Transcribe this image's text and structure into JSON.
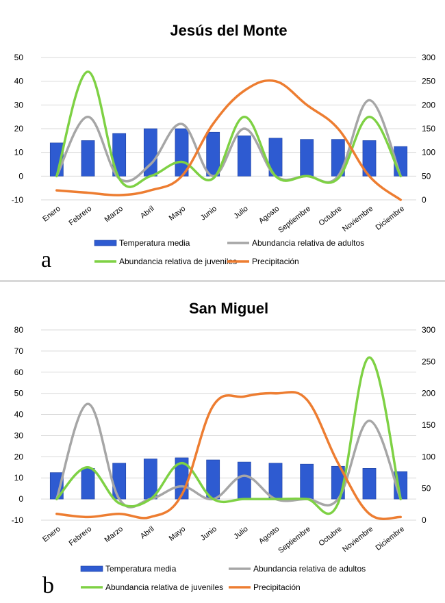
{
  "chart_data": [
    {
      "type": "bar+line",
      "panel_label": "a",
      "title": "Jesús del Monte",
      "categories": [
        "Enero",
        "Febrero",
        "Marzo",
        "Abril",
        "Mayo",
        "Junio",
        "Julio",
        "Agosto",
        "Septiembre",
        "Octubre",
        "Noviembre",
        "Diciembre"
      ],
      "y_left": {
        "min": -10,
        "max": 50,
        "ticks": [
          -10,
          0,
          10,
          20,
          30,
          40,
          50
        ]
      },
      "y_right": {
        "min": 0,
        "max": 300,
        "ticks": [
          0,
          50,
          100,
          150,
          200,
          250,
          300
        ]
      },
      "grid": true,
      "legend_position": "bottom",
      "series": [
        {
          "name": "Temperatura media",
          "type": "bar",
          "axis": "left",
          "color": "#2e5bd1",
          "values": [
            14,
            15,
            18,
            20,
            20,
            18.5,
            17,
            16,
            15.5,
            15.5,
            15,
            12.5
          ]
        },
        {
          "name": "Abundancia relativa de adultos",
          "type": "line",
          "axis": "left",
          "color": "#a6a6a6",
          "values": [
            0,
            25,
            -1,
            5,
            22,
            0,
            20,
            0,
            0,
            0,
            32,
            0
          ]
        },
        {
          "name": "Abundancia relativa de juveniles",
          "type": "line",
          "axis": "left",
          "color": "#7ed144",
          "values": [
            0,
            44,
            -1,
            0,
            6,
            -1,
            25,
            0,
            0,
            -1,
            25,
            0
          ]
        },
        {
          "name": "Precipitación",
          "type": "line",
          "axis": "right",
          "color": "#ed7d31",
          "values": [
            20,
            15,
            10,
            20,
            50,
            160,
            230,
            250,
            200,
            150,
            50,
            0
          ]
        }
      ]
    },
    {
      "type": "bar+line",
      "panel_label": "b",
      "title": "San Miguel",
      "categories": [
        "Enero",
        "Febrero",
        "Marzo",
        "Abril",
        "Mayo",
        "Junio",
        "Julio",
        "Agosto",
        "Septiembre",
        "Octubre",
        "Noviembre",
        "Diciembre"
      ],
      "y_left": {
        "min": -10,
        "max": 80,
        "ticks": [
          -10,
          0,
          10,
          20,
          30,
          40,
          50,
          60,
          70,
          80
        ]
      },
      "y_right": {
        "min": 0,
        "max": 300,
        "ticks": [
          0,
          50,
          100,
          150,
          200,
          250,
          300
        ]
      },
      "grid": true,
      "legend_position": "bottom",
      "series": [
        {
          "name": "Temperatura media",
          "type": "bar",
          "axis": "left",
          "color": "#2e5bd1",
          "values": [
            12.5,
            14.5,
            17,
            19,
            19.5,
            18.5,
            17.5,
            17,
            16.5,
            15.5,
            14.5,
            13
          ]
        },
        {
          "name": "Abundancia relativa de adultos",
          "type": "line",
          "axis": "left",
          "color": "#a6a6a6",
          "values": [
            0,
            45,
            0,
            0,
            6,
            0,
            11,
            0,
            0,
            0,
            37,
            0
          ]
        },
        {
          "name": "Abundancia relativa de juveniles",
          "type": "line",
          "axis": "left",
          "color": "#7ed144",
          "values": [
            0,
            15,
            -2,
            0,
            17,
            0,
            0,
            0,
            0,
            -2,
            67,
            0
          ]
        },
        {
          "name": "Precipitación",
          "type": "line",
          "axis": "right",
          "color": "#ed7d31",
          "values": [
            10,
            5,
            10,
            5,
            40,
            180,
            195,
            200,
            190,
            90,
            10,
            5
          ]
        }
      ]
    }
  ]
}
